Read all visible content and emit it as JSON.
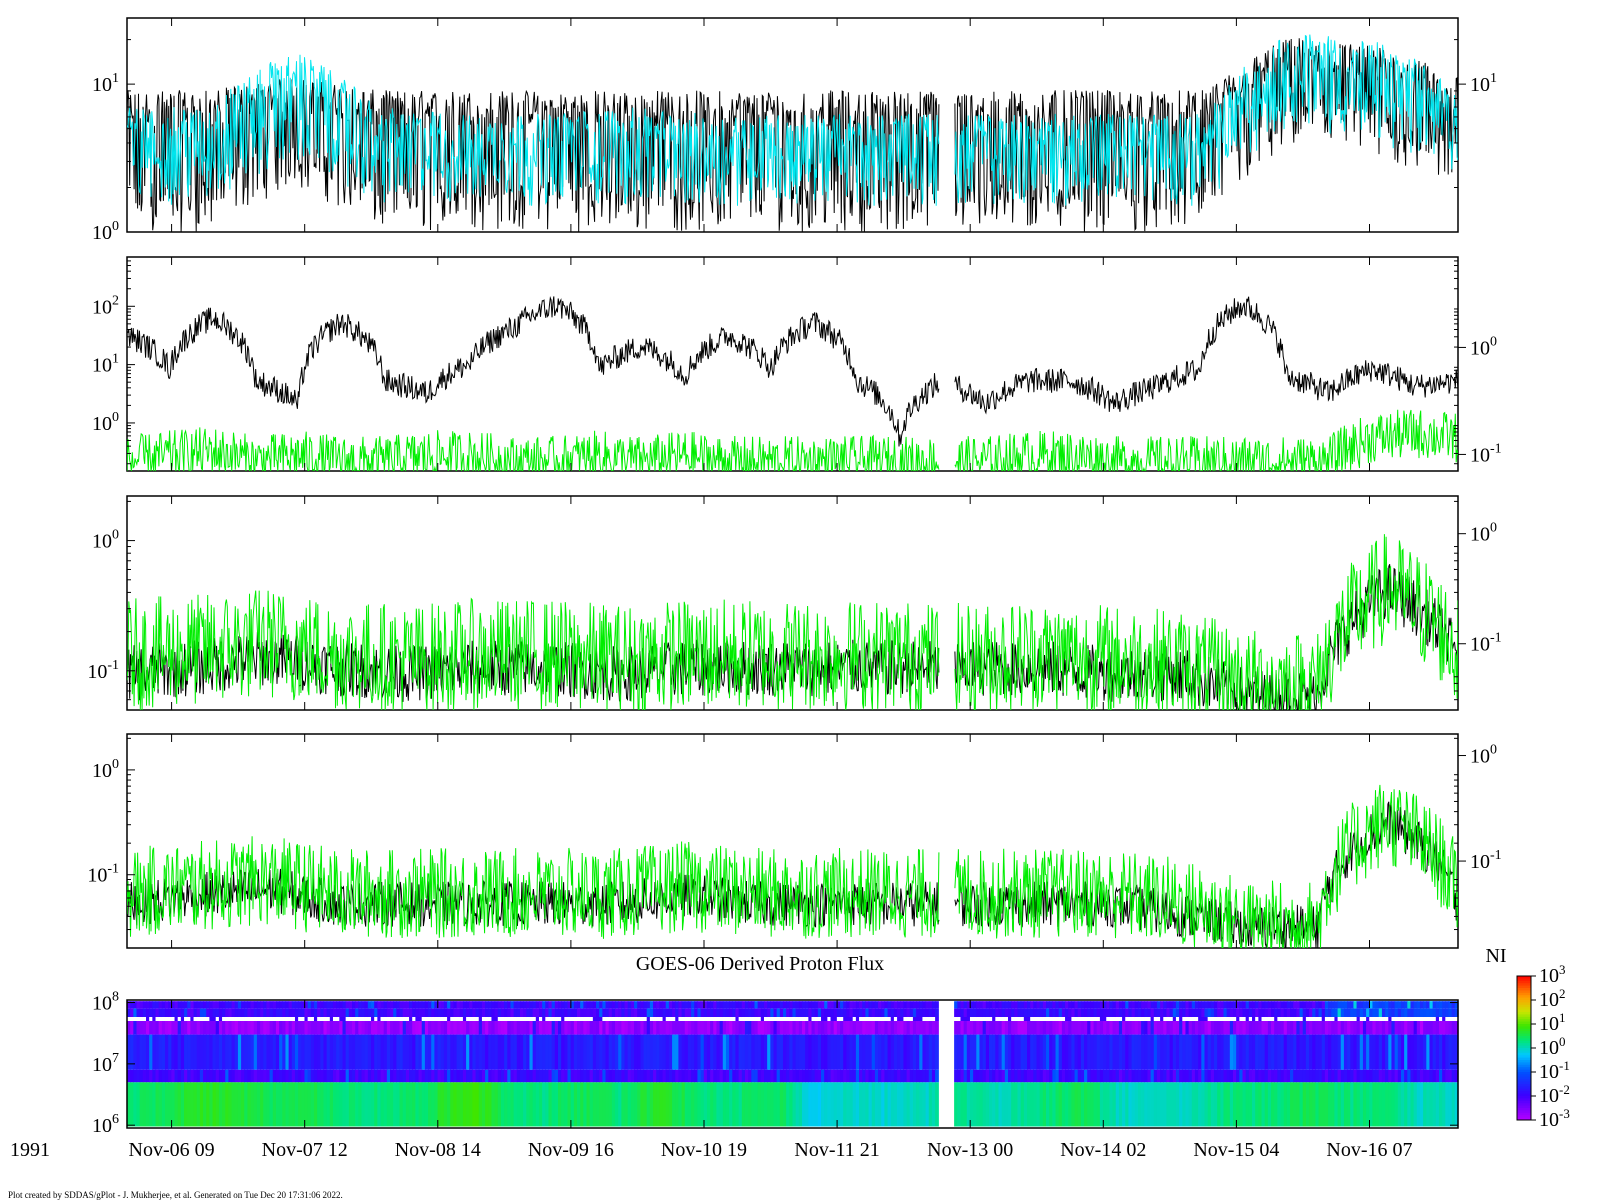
{
  "chart_data": [
    {
      "type": "line",
      "panel": 1,
      "yscale": "log",
      "ylim": [
        1,
        28
      ],
      "left_ticks": [
        1,
        10
      ],
      "right_ticks": [
        10
      ],
      "series": [
        {
          "color": "#000000",
          "level": [
            6.5,
            6.5,
            8.0,
            6.5,
            6.5,
            6.5,
            6.5,
            6.5,
            6.5,
            6.5,
            6.5,
            6.5,
            6.5,
            6.5,
            15.0,
            13.0,
            8.0
          ],
          "band_low": [
            2.0,
            2.0,
            4.0,
            2.0,
            2.0,
            2.0,
            2.0,
            2.0,
            2.0,
            2.0,
            2.0,
            2.0,
            2.0,
            2.0,
            7.0,
            6.0,
            4.0
          ]
        },
        {
          "color": "#00e5ee",
          "level": [
            5.0,
            5.0,
            12.0,
            5.0,
            4.5,
            4.5,
            5.0,
            4.5,
            4.5,
            4.5,
            4.5,
            4.5,
            4.5,
            4.5,
            16.0,
            14.0,
            7.0
          ],
          "band_low": [
            3.0,
            3.0,
            6.0,
            3.0,
            3.0,
            3.0,
            3.0,
            3.0,
            3.0,
            3.0,
            3.0,
            3.0,
            3.0,
            3.0,
            10.0,
            8.0,
            5.0
          ]
        }
      ]
    },
    {
      "type": "line",
      "panel": 2,
      "yscale": "log",
      "ylim": [
        0.15,
        700
      ],
      "left_ticks": [
        1,
        10,
        100
      ],
      "right_ticks": [
        0.1,
        1
      ],
      "right_ylim": [
        0.07,
        7
      ],
      "series": [
        {
          "color": "#000000",
          "level": [
            30,
            8,
            60,
            5,
            2,
            50,
            5,
            3,
            10,
            40,
            100,
            8,
            20,
            6,
            30,
            8,
            50,
            5,
            0.5,
            5,
            2,
            5,
            5,
            2,
            4,
            8,
            100,
            6,
            3,
            8,
            4,
            5
          ]
        },
        {
          "color": "#00ee00",
          "level": [
            0.2,
            0.25,
            0.3,
            0.2,
            0.25,
            0.2,
            0.2,
            0.25,
            0.25,
            0.2,
            0.2,
            0.25,
            0.2,
            0.25,
            0.2,
            0.2,
            0.2,
            0.2,
            0.2,
            0.2,
            0.2,
            0.25,
            0.25,
            0.2,
            0.2,
            0.2,
            0.2,
            0.2,
            0.2,
            0.5,
            0.6,
            0.5
          ]
        }
      ]
    },
    {
      "type": "line",
      "panel": 3,
      "yscale": "log",
      "ylim": [
        0.05,
        2.2
      ],
      "left_ticks": [
        0.1,
        1
      ],
      "right_ticks": [
        0.1,
        1
      ],
      "right_ylim": [
        0.025,
        2.2
      ],
      "series": [
        {
          "color": "#000000",
          "level": [
            0.09,
            0.1,
            0.12,
            0.1,
            0.09,
            0.1,
            0.1,
            0.09,
            0.1,
            0.1,
            0.1,
            0.1,
            0.1,
            0.1,
            0.09,
            0.09,
            0.06,
            0.06,
            0.4,
            0.12
          ]
        },
        {
          "color": "#00ee00",
          "level": [
            0.12,
            0.13,
            0.15,
            0.12,
            0.11,
            0.12,
            0.12,
            0.11,
            0.12,
            0.12,
            0.12,
            0.12,
            0.11,
            0.12,
            0.11,
            0.1,
            0.07,
            0.07,
            0.4,
            0.12
          ]
        }
      ]
    },
    {
      "type": "line",
      "panel": 4,
      "yscale": "log",
      "ylim": [
        0.02,
        2.2
      ],
      "left_ticks": [
        0.1,
        1
      ],
      "right_ticks": [
        0.1,
        1
      ],
      "right_ylim": [
        0.015,
        1.6
      ],
      "series": [
        {
          "color": "#000000",
          "level": [
            0.05,
            0.06,
            0.07,
            0.05,
            0.05,
            0.05,
            0.05,
            0.05,
            0.06,
            0.05,
            0.05,
            0.05,
            0.05,
            0.05,
            0.05,
            0.04,
            0.03,
            0.03,
            0.3,
            0.05
          ]
        },
        {
          "color": "#00ee00",
          "level": [
            0.06,
            0.07,
            0.08,
            0.06,
            0.06,
            0.06,
            0.06,
            0.06,
            0.07,
            0.06,
            0.06,
            0.06,
            0.06,
            0.06,
            0.06,
            0.05,
            0.03,
            0.03,
            0.3,
            0.06
          ]
        }
      ]
    },
    {
      "type": "heatmap",
      "panel": 5,
      "title": "GOES-06 Derived Proton Flux",
      "yscale": "log",
      "ylim": [
        900000,
        110000000
      ],
      "left_ticks": [
        1000000,
        10000000,
        100000000
      ],
      "colorbar": {
        "label": "NI",
        "ticks": [
          0.001,
          0.01,
          0.1,
          1,
          10,
          100,
          1000
        ],
        "range": [
          0.001,
          1000
        ]
      },
      "rows": [
        {
          "ymin": 80000000,
          "ymax": 105000000,
          "value": 0.01
        },
        {
          "ymin": 58000000,
          "ymax": 80000000,
          "value": 0.01
        },
        {
          "ymin": 50000000,
          "ymax": 58000000,
          "value": "white"
        },
        {
          "ymin": 30000000,
          "ymax": 50000000,
          "value": 0.002
        },
        {
          "ymin": 8000000,
          "ymax": 30000000,
          "value": 0.02
        },
        {
          "ymin": 5000000,
          "ymax": 8000000,
          "value": 0.01
        },
        {
          "ymin": 950000,
          "ymax": 5000000,
          "value": 1
        }
      ],
      "low_channel_levels": [
        2,
        3,
        6,
        4,
        3,
        3,
        2,
        2,
        3,
        8,
        2,
        2,
        3,
        2,
        5,
        2,
        2,
        3,
        0.5,
        1,
        0.8,
        1,
        1.5,
        1,
        2,
        3,
        1,
        0.8,
        1,
        2,
        2,
        3,
        2,
        2,
        1,
        1
      ]
    }
  ],
  "time_axis": {
    "tick_labels": [
      "Nov-06 09",
      "Nov-07 12",
      "Nov-08 14",
      "Nov-09 16",
      "Nov-10 19",
      "Nov-11 21",
      "Nov-13 00",
      "Nov-14 02",
      "Nov-15 04",
      "Nov-16 07"
    ],
    "year_label": "1991",
    "data_gap_fraction": [
      0.61,
      0.622
    ]
  },
  "footer": {
    "credit": "Plot created by SDDAS/gPlot - J. Mukherjee, et al.  Generated on Tue Dec 20 17:31:06 2022."
  }
}
